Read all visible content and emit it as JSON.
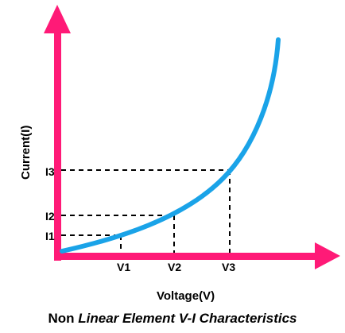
{
  "colors": {
    "axis": "#ff1a77",
    "curve": "#1aa3e8",
    "guide": "#000000",
    "text": "#000000"
  },
  "axes": {
    "x_label": "Voltage(V)",
    "y_label": "Current(I)"
  },
  "ticks": {
    "x": [
      "V1",
      "V2",
      "V3"
    ],
    "y": [
      "I1",
      "I2",
      "I3"
    ]
  },
  "caption": {
    "prefix": "Non ",
    "italic": "Linear Element V-I Characteristics"
  }
}
